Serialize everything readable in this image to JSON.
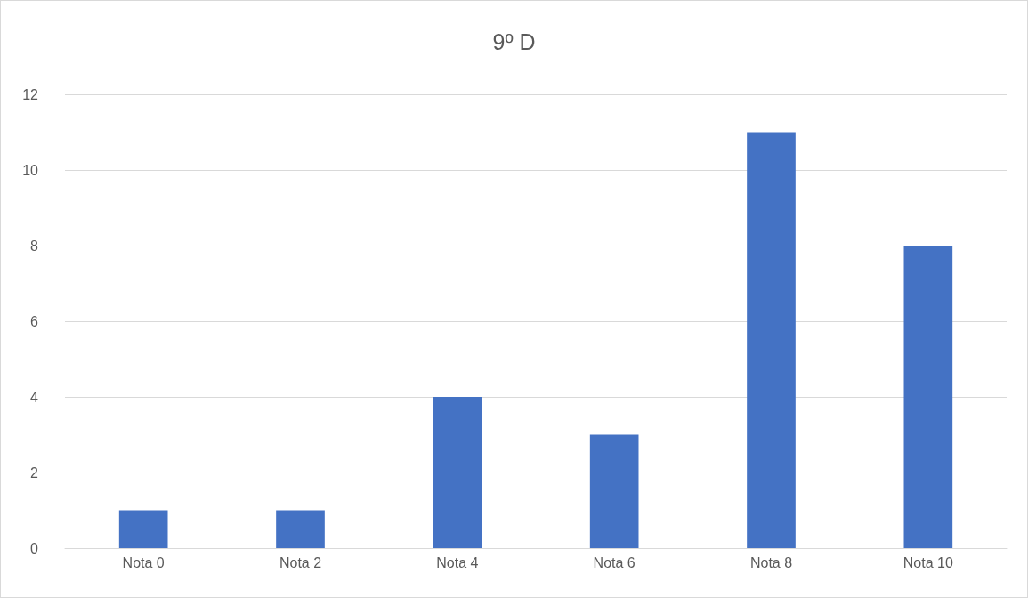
{
  "chart_data": {
    "type": "bar",
    "title": "9º D",
    "categories": [
      "Nota 0",
      "Nota 2",
      "Nota 4",
      "Nota 6",
      "Nota 8",
      "Nota 10"
    ],
    "values": [
      1,
      1,
      4,
      3,
      11,
      8
    ],
    "color": "#4472c4",
    "ylim": [
      0,
      12
    ],
    "yticks": [
      0,
      2,
      4,
      6,
      8,
      10,
      12
    ],
    "grid": "y"
  }
}
